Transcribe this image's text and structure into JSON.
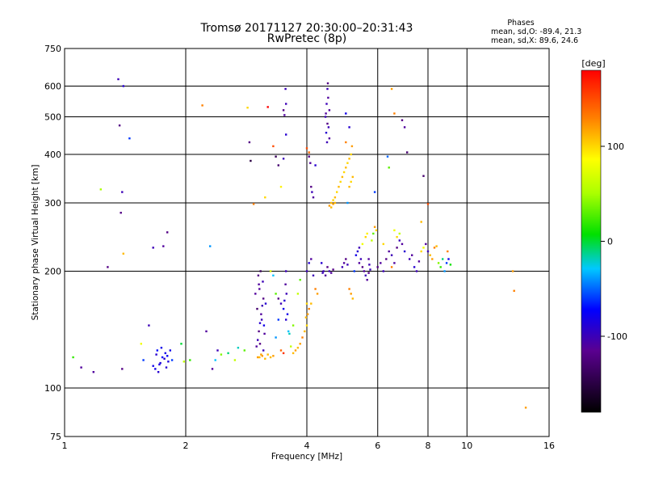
{
  "header": {
    "title_line1": "Tromsø 20171127 20:30:00–20:31:43",
    "title_line2": "RwPretec (8p)",
    "stats_title": "Phases",
    "stats_line1": "mean, sd,O: -89.4, 21.3",
    "stats_line2": "mean, sd,X:  89.6, 24.6"
  },
  "colorbar": {
    "label": "[deg]",
    "ticks": [
      {
        "value": 100,
        "label": "100"
      },
      {
        "value": 0,
        "label": "0"
      },
      {
        "value": -100,
        "label": "-100"
      }
    ],
    "range": [
      -180,
      180
    ]
  },
  "chart_data": {
    "type": "scatter",
    "title": "Tromsø 20171127 20:30:00–20:31:43",
    "subtitle": "RwPretec (8p)",
    "xlabel": "Frequency [MHz]",
    "ylabel": "Stationary phase Virtual Height [km]",
    "xscale": "log",
    "yscale": "log",
    "xlim": [
      1,
      16
    ],
    "ylim": [
      75,
      750
    ],
    "xticks": [
      {
        "value": 1,
        "label": "1"
      },
      {
        "value": 2,
        "label": "2"
      },
      {
        "value": 4,
        "label": "4"
      },
      {
        "value": 6,
        "label": "6"
      },
      {
        "value": 8,
        "label": "8"
      },
      {
        "value": 10,
        "label": "10"
      },
      {
        "value": 16,
        "label": "16"
      }
    ],
    "yticks": [
      {
        "value": 75,
        "label": "75"
      },
      {
        "value": 100,
        "label": "100"
      },
      {
        "value": 200,
        "label": "200"
      },
      {
        "value": 300,
        "label": "300"
      },
      {
        "value": 400,
        "label": "400"
      },
      {
        "value": 500,
        "label": "500"
      },
      {
        "value": 600,
        "label": "600"
      },
      {
        "value": 750,
        "label": "750"
      }
    ],
    "grid": true,
    "color_variable": "phase [deg]",
    "points": [
      [
        1.1,
        113,
        -110
      ],
      [
        1.18,
        110,
        -110
      ],
      [
        1.23,
        325,
        50
      ],
      [
        1.28,
        205,
        -120
      ],
      [
        1.36,
        625,
        -100
      ],
      [
        1.37,
        475,
        -120
      ],
      [
        1.39,
        320,
        -100
      ],
      [
        1.38,
        283,
        -120
      ],
      [
        1.4,
        600,
        -90
      ],
      [
        1.45,
        440,
        -60
      ],
      [
        1.4,
        222,
        110
      ],
      [
        1.39,
        112,
        -120
      ],
      [
        1.55,
        130,
        80
      ],
      [
        1.57,
        118,
        -60
      ],
      [
        1.62,
        145,
        -100
      ],
      [
        1.66,
        230,
        -100
      ],
      [
        1.76,
        232,
        -110
      ],
      [
        1.8,
        252,
        -120
      ],
      [
        1.68,
        112,
        -80
      ],
      [
        1.71,
        110,
        -90
      ],
      [
        1.73,
        116,
        -85
      ],
      [
        1.75,
        120,
        -75
      ],
      [
        1.78,
        123,
        -80
      ],
      [
        1.81,
        117,
        -85
      ],
      [
        1.7,
        125,
        -70
      ],
      [
        1.74,
        127,
        -80
      ],
      [
        1.77,
        119,
        -90
      ],
      [
        1.8,
        121,
        -75
      ],
      [
        1.72,
        115,
        -85
      ],
      [
        1.66,
        114,
        -80
      ],
      [
        1.79,
        113,
        -90
      ],
      [
        1.83,
        125,
        -80
      ],
      [
        1.85,
        118,
        -60
      ],
      [
        1.69,
        122,
        -90
      ],
      [
        1.95,
        130,
        0
      ],
      [
        1.98,
        117,
        60
      ],
      [
        2.05,
        118,
        20
      ],
      [
        2.2,
        535,
        130
      ],
      [
        2.25,
        140,
        -110
      ],
      [
        2.3,
        232,
        -40
      ],
      [
        2.33,
        112,
        -110
      ],
      [
        2.37,
        118,
        -30
      ],
      [
        2.4,
        125,
        -100
      ],
      [
        2.45,
        122,
        40
      ],
      [
        2.55,
        123,
        -10
      ],
      [
        2.65,
        118,
        60
      ],
      [
        2.7,
        127,
        -20
      ],
      [
        2.8,
        125,
        30
      ],
      [
        2.85,
        528,
        100
      ],
      [
        2.88,
        430,
        -120
      ],
      [
        2.9,
        385,
        -150
      ],
      [
        2.95,
        298,
        130
      ],
      [
        3.02,
        120,
        120
      ],
      [
        3.05,
        120,
        110
      ],
      [
        3.1,
        121,
        120
      ],
      [
        3.15,
        119,
        110
      ],
      [
        3.2,
        122,
        110
      ],
      [
        3.25,
        120,
        110
      ],
      [
        3.3,
        121,
        120
      ],
      [
        3.08,
        122,
        120
      ],
      [
        3.0,
        128,
        -110
      ],
      [
        3.02,
        133,
        -100
      ],
      [
        3.04,
        140,
        -120
      ],
      [
        3.06,
        147,
        -90
      ],
      [
        3.08,
        155,
        -110
      ],
      [
        3.1,
        163,
        -100
      ],
      [
        3.12,
        170,
        -120
      ],
      [
        3.05,
        180,
        -110
      ],
      [
        3.03,
        195,
        -120
      ],
      [
        3.07,
        200,
        -140
      ],
      [
        3.11,
        188,
        -100
      ],
      [
        3.13,
        145,
        -80
      ],
      [
        3.14,
        138,
        -110
      ],
      [
        3.01,
        160,
        -130
      ],
      [
        3.09,
        150,
        -100
      ],
      [
        3.16,
        165,
        -90
      ],
      [
        2.98,
        175,
        -110
      ],
      [
        3.06,
        130,
        -120
      ],
      [
        3.12,
        125,
        -100
      ],
      [
        3.04,
        185,
        -110
      ],
      [
        3.2,
        530,
        180
      ],
      [
        3.3,
        420,
        150
      ],
      [
        3.35,
        395,
        -140
      ],
      [
        3.4,
        375,
        -130
      ],
      [
        3.45,
        330,
        90
      ],
      [
        3.5,
        520,
        -120
      ],
      [
        3.52,
        505,
        -110
      ],
      [
        3.54,
        590,
        -100
      ],
      [
        3.55,
        540,
        -100
      ],
      [
        3.55,
        450,
        -90
      ],
      [
        3.5,
        390,
        -100
      ],
      [
        3.15,
        310,
        100
      ],
      [
        3.25,
        200,
        70
      ],
      [
        3.3,
        195,
        -30
      ],
      [
        3.35,
        175,
        30
      ],
      [
        3.4,
        170,
        -120
      ],
      [
        3.45,
        165,
        -100
      ],
      [
        3.5,
        160,
        -80
      ],
      [
        3.55,
        150,
        -90
      ],
      [
        3.6,
        140,
        -30
      ],
      [
        3.65,
        128,
        60
      ],
      [
        3.7,
        123,
        110
      ],
      [
        3.75,
        125,
        120
      ],
      [
        3.8,
        127,
        110
      ],
      [
        3.85,
        130,
        120
      ],
      [
        3.9,
        135,
        130
      ],
      [
        3.95,
        140,
        110
      ],
      [
        4.0,
        145,
        100
      ],
      [
        3.55,
        200,
        -100
      ],
      [
        3.54,
        185,
        -110
      ],
      [
        3.56,
        175,
        -100
      ],
      [
        3.52,
        168,
        -90
      ],
      [
        3.58,
        155,
        -80
      ],
      [
        3.4,
        150,
        -60
      ],
      [
        3.35,
        135,
        -40
      ],
      [
        3.62,
        138,
        -20
      ],
      [
        3.7,
        145,
        40
      ],
      [
        3.5,
        123,
        160
      ],
      [
        3.45,
        125,
        140
      ],
      [
        3.8,
        175,
        60
      ],
      [
        3.85,
        190,
        30
      ],
      [
        4.0,
        200,
        -100
      ],
      [
        4.05,
        210,
        -90
      ],
      [
        4.1,
        215,
        -110
      ],
      [
        4.15,
        195,
        -100
      ],
      [
        4.2,
        180,
        130
      ],
      [
        4.25,
        175,
        120
      ],
      [
        4.1,
        165,
        110
      ],
      [
        4.05,
        160,
        130
      ],
      [
        4.02,
        155,
        120
      ],
      [
        3.98,
        152,
        110
      ],
      [
        4.0,
        165,
        100
      ],
      [
        4.05,
        395,
        -120
      ],
      [
        4.08,
        380,
        -110
      ],
      [
        4.1,
        330,
        -120
      ],
      [
        4.12,
        320,
        -100
      ],
      [
        4.15,
        310,
        -110
      ],
      [
        4.2,
        375,
        -90
      ],
      [
        4.0,
        415,
        150
      ],
      [
        4.05,
        405,
        140
      ],
      [
        4.5,
        590,
        -100
      ],
      [
        4.52,
        560,
        -110
      ],
      [
        4.48,
        540,
        -100
      ],
      [
        4.55,
        520,
        -110
      ],
      [
        4.5,
        480,
        -120
      ],
      [
        4.53,
        470,
        -100
      ],
      [
        4.47,
        455,
        -90
      ],
      [
        4.55,
        440,
        -110
      ],
      [
        4.45,
        500,
        -100
      ],
      [
        4.51,
        610,
        -120
      ],
      [
        4.49,
        430,
        -100
      ],
      [
        4.46,
        510,
        -110
      ],
      [
        4.6,
        300,
        110
      ],
      [
        4.65,
        305,
        100
      ],
      [
        4.7,
        310,
        110
      ],
      [
        4.75,
        320,
        100
      ],
      [
        4.8,
        330,
        110
      ],
      [
        4.85,
        340,
        100
      ],
      [
        4.9,
        350,
        110
      ],
      [
        4.95,
        360,
        100
      ],
      [
        5.0,
        370,
        110
      ],
      [
        5.05,
        380,
        100
      ],
      [
        5.1,
        390,
        110
      ],
      [
        5.15,
        400,
        100
      ],
      [
        4.55,
        295,
        120
      ],
      [
        4.6,
        292,
        110
      ],
      [
        4.65,
        298,
        120
      ],
      [
        4.7,
        300,
        110
      ],
      [
        5.2,
        350,
        110
      ],
      [
        5.15,
        340,
        100
      ],
      [
        5.1,
        330,
        110
      ],
      [
        5.18,
        420,
        120
      ],
      [
        4.4,
        200,
        -100
      ],
      [
        4.45,
        195,
        -110
      ],
      [
        4.5,
        205,
        -120
      ],
      [
        4.55,
        200,
        -100
      ],
      [
        4.6,
        198,
        -110
      ],
      [
        4.65,
        202,
        -120
      ],
      [
        4.35,
        210,
        -90
      ],
      [
        4.38,
        198,
        -100
      ],
      [
        4.9,
        205,
        -100
      ],
      [
        4.95,
        210,
        -110
      ],
      [
        5.0,
        215,
        -120
      ],
      [
        5.05,
        208,
        -100
      ],
      [
        5.1,
        180,
        130
      ],
      [
        5.15,
        175,
        120
      ],
      [
        5.2,
        170,
        110
      ],
      [
        5.25,
        200,
        -60
      ],
      [
        5.4,
        210,
        -110
      ],
      [
        5.45,
        215,
        -100
      ],
      [
        5.5,
        205,
        -120
      ],
      [
        5.55,
        200,
        -110
      ],
      [
        5.6,
        195,
        -100
      ],
      [
        5.65,
        190,
        -110
      ],
      [
        5.7,
        198,
        -120
      ],
      [
        5.75,
        202,
        -100
      ],
      [
        5.3,
        220,
        -80
      ],
      [
        5.35,
        225,
        -90
      ],
      [
        5.4,
        230,
        -100
      ],
      [
        5.8,
        240,
        60
      ],
      [
        5.85,
        250,
        30
      ],
      [
        5.9,
        260,
        120
      ],
      [
        5.95,
        255,
        100
      ],
      [
        5.5,
        235,
        80
      ],
      [
        5.6,
        245,
        100
      ],
      [
        5.65,
        250,
        90
      ],
      [
        5.7,
        215,
        -110
      ],
      [
        5.72,
        208,
        -100
      ],
      [
        5.0,
        510,
        -80
      ],
      [
        5.1,
        470,
        -90
      ],
      [
        5.0,
        430,
        130
      ],
      [
        5.05,
        300,
        -40
      ],
      [
        5.9,
        320,
        -60
      ],
      [
        6.0,
        205,
        -120
      ],
      [
        6.1,
        210,
        -110
      ],
      [
        6.2,
        200,
        -100
      ],
      [
        6.3,
        215,
        -120
      ],
      [
        6.4,
        225,
        -110
      ],
      [
        6.5,
        220,
        -100
      ],
      [
        6.6,
        210,
        -110
      ],
      [
        6.7,
        230,
        -120
      ],
      [
        6.8,
        240,
        -100
      ],
      [
        6.9,
        235,
        -110
      ],
      [
        7.0,
        225,
        -90
      ],
      [
        6.35,
        395,
        -50
      ],
      [
        6.5,
        590,
        120
      ],
      [
        6.6,
        510,
        130
      ],
      [
        6.9,
        490,
        -120
      ],
      [
        7.0,
        470,
        -110
      ],
      [
        7.1,
        405,
        -130
      ],
      [
        6.4,
        370,
        30
      ],
      [
        6.6,
        255,
        80
      ],
      [
        6.7,
        245,
        100
      ],
      [
        6.8,
        250,
        60
      ],
      [
        6.5,
        205,
        130
      ],
      [
        6.2,
        235,
        100
      ],
      [
        7.2,
        215,
        -100
      ],
      [
        7.3,
        220,
        -110
      ],
      [
        7.4,
        205,
        -90
      ],
      [
        7.5,
        200,
        -100
      ],
      [
        7.6,
        212,
        -110
      ],
      [
        7.7,
        225,
        100
      ],
      [
        7.8,
        230,
        80
      ],
      [
        7.9,
        235,
        -110
      ],
      [
        8.0,
        225,
        -100
      ],
      [
        8.1,
        220,
        110
      ],
      [
        8.2,
        215,
        120
      ],
      [
        8.3,
        230,
        130
      ],
      [
        7.8,
        352,
        -130
      ],
      [
        7.7,
        268,
        110
      ],
      [
        8.0,
        298,
        150
      ],
      [
        8.4,
        232,
        110
      ],
      [
        8.5,
        210,
        40
      ],
      [
        8.6,
        205,
        20
      ],
      [
        8.7,
        215,
        -10
      ],
      [
        8.8,
        200,
        -40
      ],
      [
        8.9,
        210,
        -60
      ],
      [
        9.0,
        215,
        -80
      ],
      [
        9.1,
        208,
        10
      ],
      [
        8.95,
        225,
        130
      ],
      [
        13.0,
        200,
        120
      ],
      [
        13.1,
        178,
        130
      ],
      [
        14.0,
        89,
        120
      ],
      [
        1.05,
        120,
        20
      ]
    ]
  }
}
